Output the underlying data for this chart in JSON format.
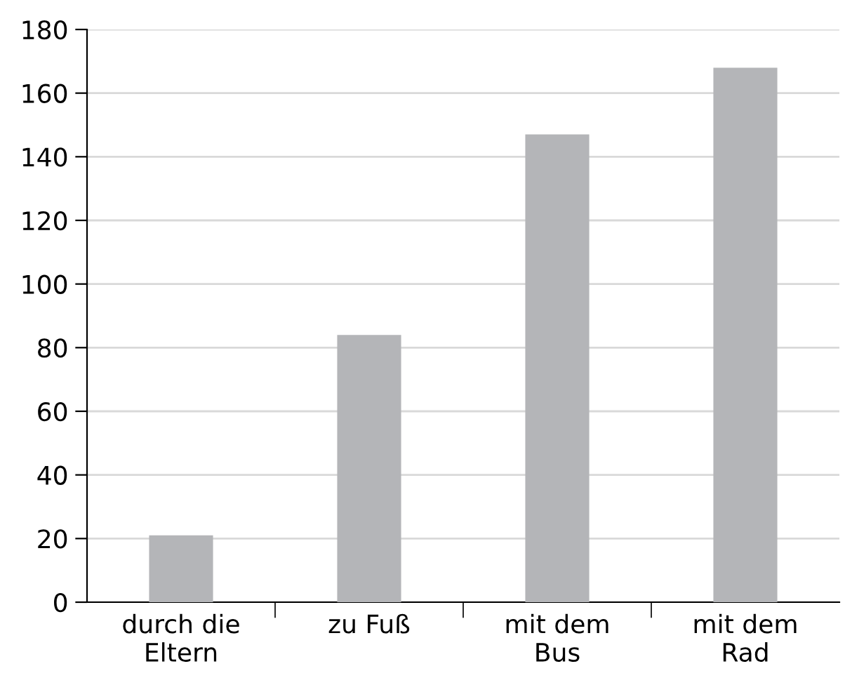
{
  "chart_data": {
    "type": "bar",
    "categories": [
      "durch die\nEltern",
      "zu Fuß",
      "mit dem\nBus",
      "mit dem\nRad"
    ],
    "values": [
      21,
      84,
      147,
      168
    ],
    "color": "#b4b5b8",
    "ylim": [
      0,
      180
    ],
    "yticks": [
      0,
      20,
      40,
      60,
      80,
      100,
      120,
      140,
      160,
      180
    ],
    "grid": "y"
  }
}
